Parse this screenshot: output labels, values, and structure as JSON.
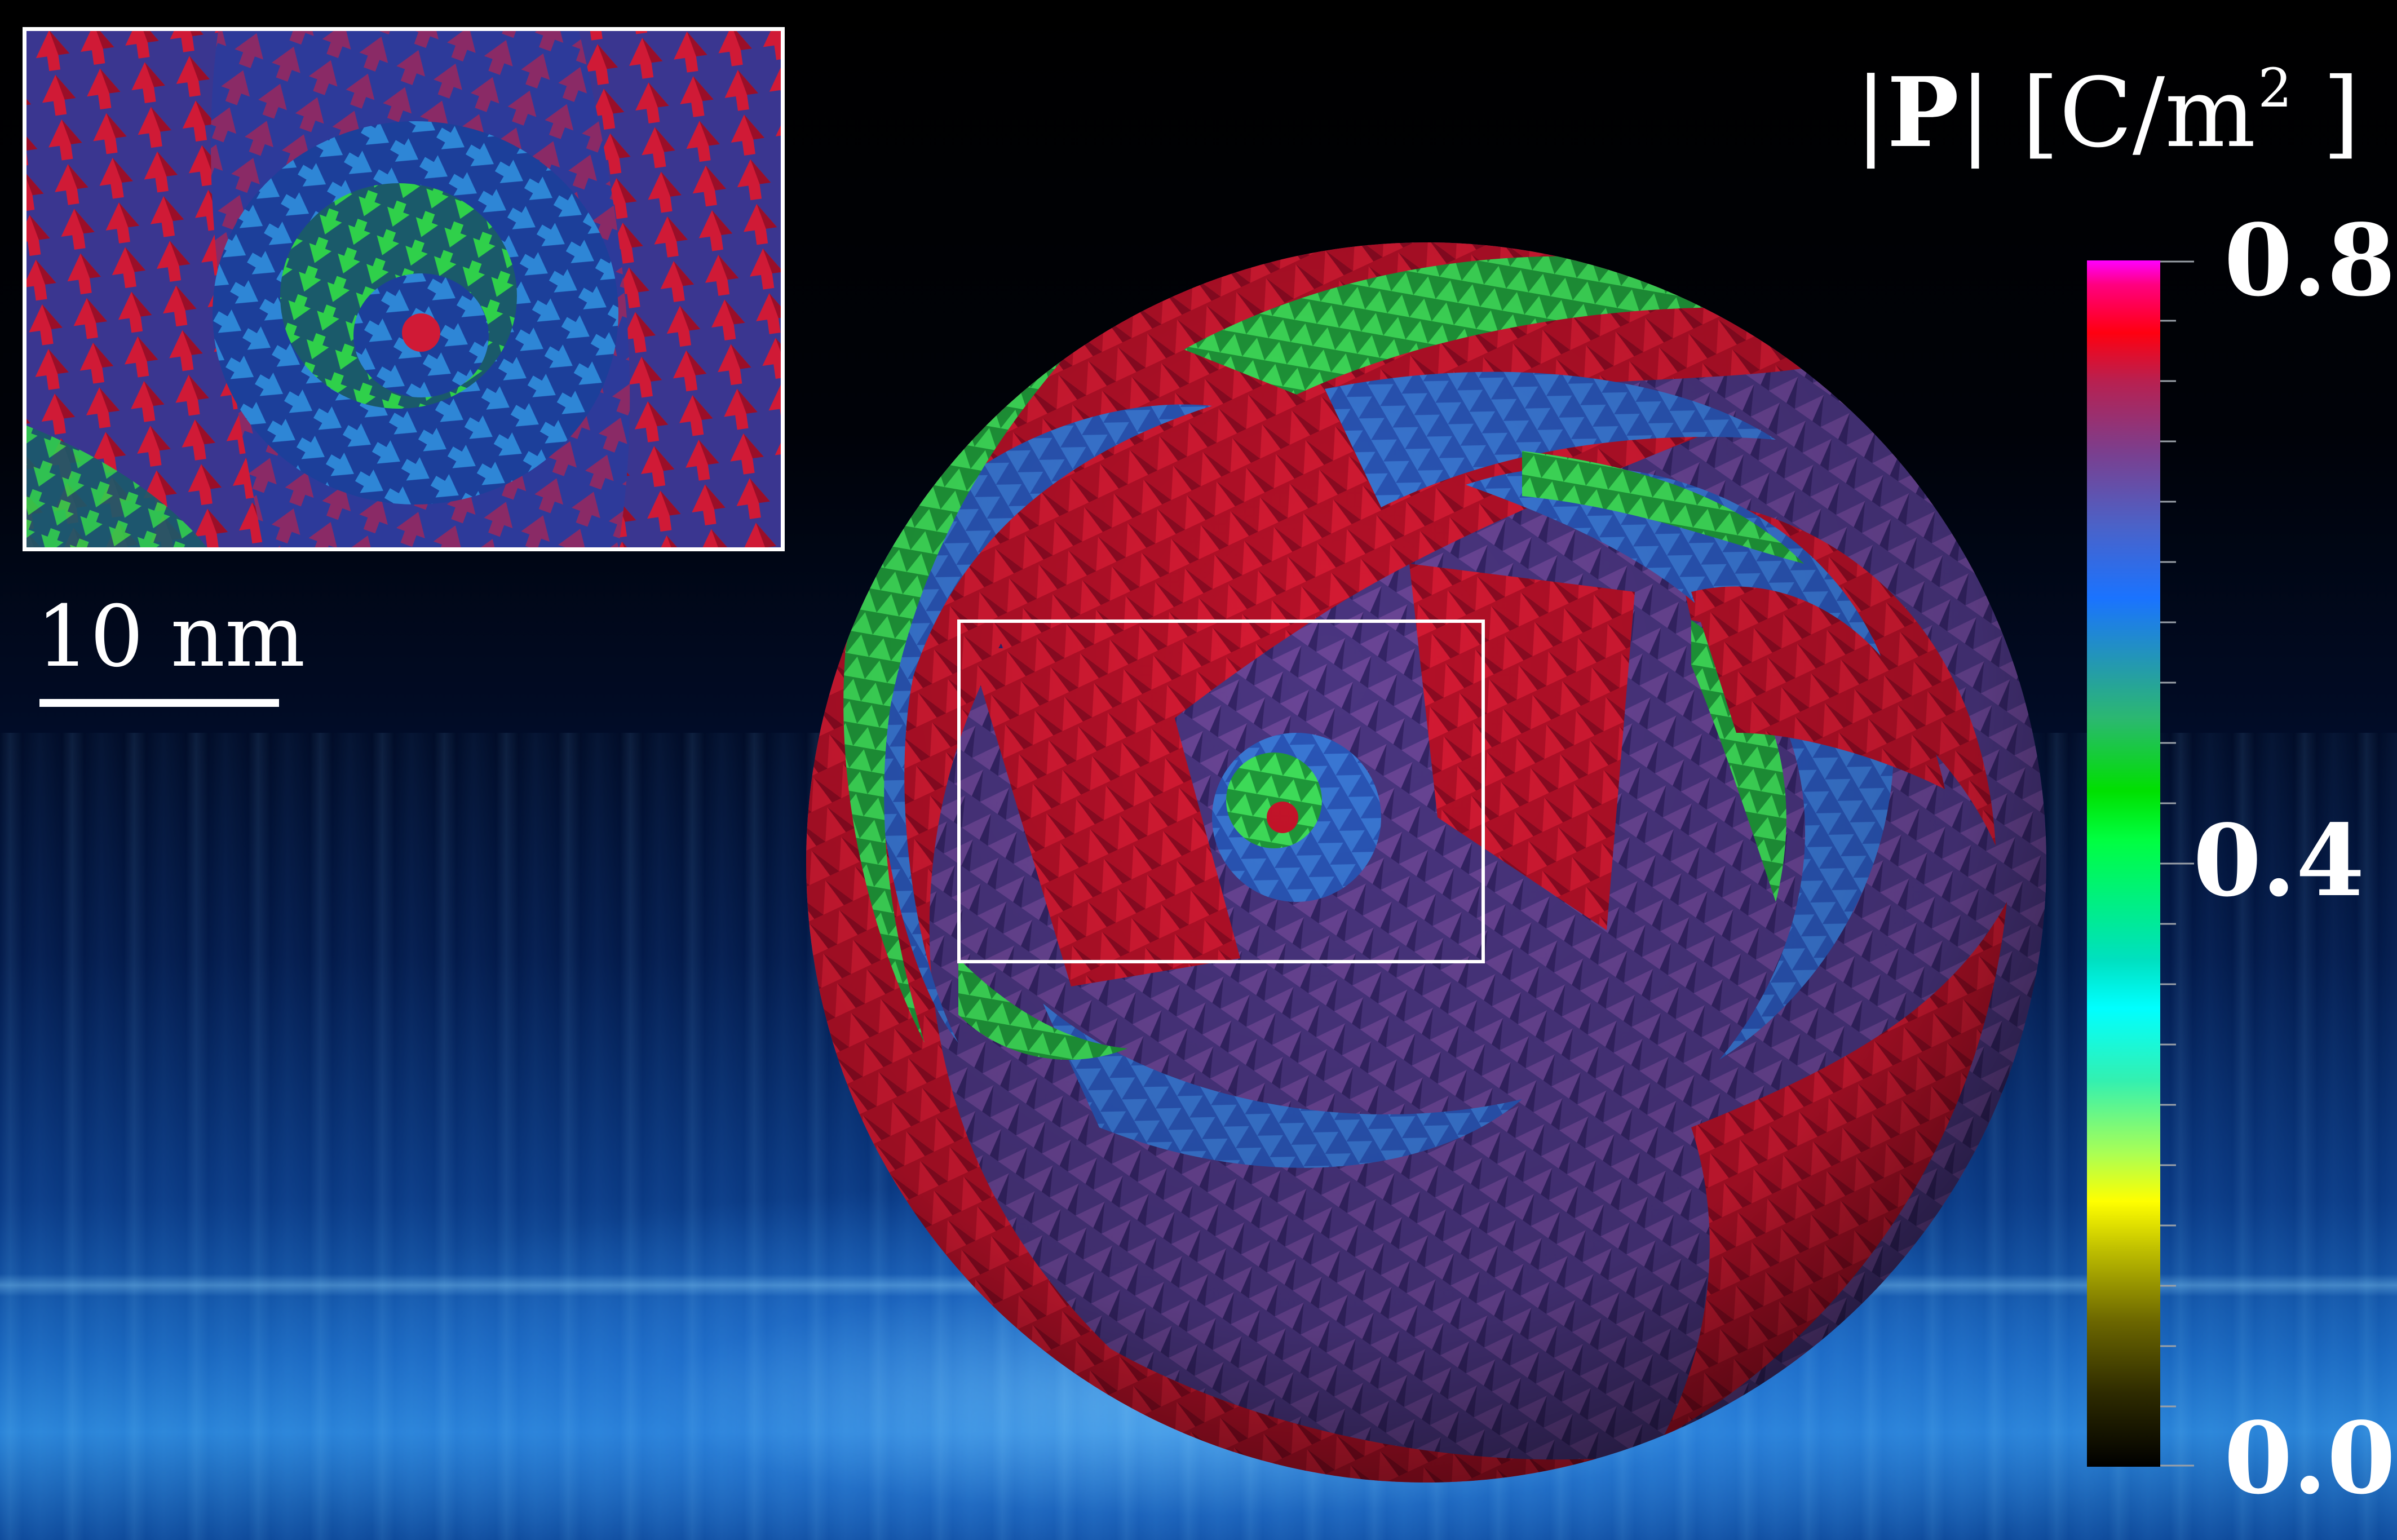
{
  "scalebar": {
    "label": "10 nm"
  },
  "colorbar": {
    "title_symbol": "P",
    "title_unit_prefix": "[C/m",
    "title_unit_power": "2",
    "title_unit_suffix": "]",
    "tick_top": "0.8",
    "tick_mid": "0.4",
    "tick_bottom": "0.0",
    "stops": [
      "#000000",
      "#ffff00",
      "#00ffff",
      "#00ff00",
      "#1a73ff",
      "#7a3f8f",
      "#ff0000",
      "#ff00ff"
    ]
  },
  "colors": {
    "red": "#c8142a",
    "purple": "#5b3c8e",
    "blue": "#2f5ec4",
    "green": "#28c43c",
    "frame": "#ffffff"
  }
}
